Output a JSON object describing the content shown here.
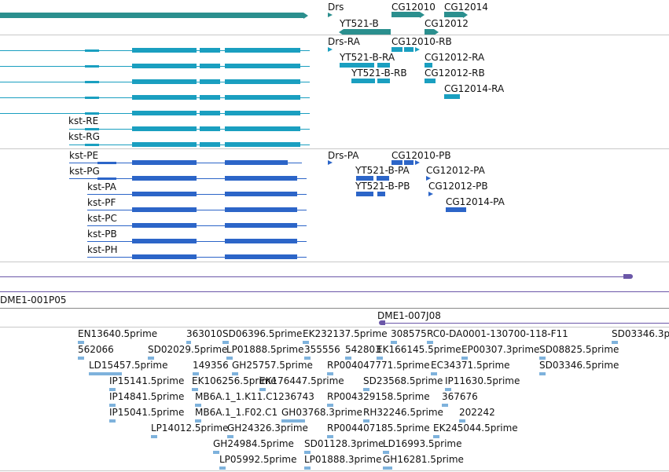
{
  "colors": {
    "gene": "#2b8f8e",
    "transcript": "#1a9fc0",
    "protein": "#2c65c8",
    "clone": "#6b57a8",
    "est": "#7eb2dc",
    "separator": "#c8c8c8"
  },
  "gene_track": {
    "labels": [
      "Drs",
      "CG12010",
      "CG12014",
      "YT521-B",
      "CG12012"
    ]
  },
  "transcript_track": {
    "labels": [
      "Drs-RA",
      "CG12010-RB",
      "YT521-B-RA",
      "CG12012-RA",
      "YT521-B-RB",
      "CG12012-RB",
      "CG12014-RA",
      "kst-RE",
      "kst-RG"
    ]
  },
  "protein_track": {
    "labels": [
      "Drs-PA",
      "CG12010-PB",
      "kst-PE",
      "kst-PG",
      "YT521-B-PA",
      "CG12012-PA",
      "YT521-B-PB",
      "CG12012-PB",
      "kst-PA",
      "kst-PF",
      "CG12014-PA",
      "kst-PC",
      "kst-PB",
      "kst-PH"
    ]
  },
  "clone_track": {
    "labels": [
      "DME1-001P05",
      "DME1-007J08"
    ]
  },
  "est_track": {
    "labels": [
      "EN13640.5prime",
      "363010",
      "SD06396.5prime",
      "EK232137.5prime",
      "308575",
      "RC0-DA0001-130700-118-F11",
      "SD03346.3p",
      "562066",
      "SD02029.5prime",
      "LP01888.5prime",
      "355556",
      "542803",
      "EK166145.5prime",
      "EP00307.3prime",
      "SD08825.5prime",
      "LD15457.5prime",
      "149356",
      "GH25757.5prime",
      "RP004047771.5prime",
      "EC34371.5prime",
      "SD03346.5prime",
      "IP15141.5prime",
      "EK106256.5prime",
      "EK176447.5prime",
      "SD23568.5prime",
      "IP11630.5prime",
      "IP14841.5prime",
      "MB6A.1_1.K11.C1236743",
      "RP004329158.5prime",
      "367676",
      "IP15041.5prime",
      "MB6A.1_1.F02.C1",
      "GH03768.3prime",
      "RH32246.5prime",
      "202242",
      "LP14012.5prime",
      "GH24326.3prime",
      "RP004407185.5prime",
      "EK245044.5prime",
      "GH24984.5prime",
      "SD01128.3prime",
      "LD16993.5prime",
      "LP05992.5prime",
      "LP01888.3prime",
      "GH16281.5prime"
    ]
  }
}
